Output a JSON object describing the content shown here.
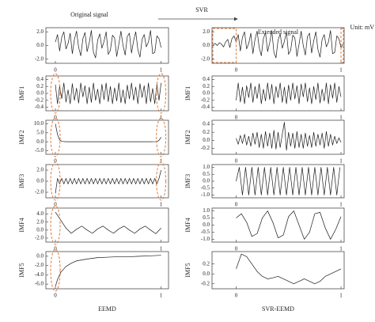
{
  "figure": {
    "arrow_label": "SVR"
  },
  "chart_data": [
    {
      "type": "line",
      "title": "Original signal",
      "color": "#1a1a1a",
      "xlim": [
        -0.09,
        1.07
      ],
      "xticks": [
        0,
        1
      ],
      "ylim": [
        -2.6,
        2.6
      ],
      "yticks": [
        {
          "value": 2,
          "label": "2.0"
        },
        {
          "value": 0,
          "label": "0.0"
        },
        {
          "value": -2,
          "label": "-2.0"
        }
      ],
      "x": [
        0,
        0.02,
        0.04,
        0.06,
        0.08,
        0.1,
        0.12,
        0.14,
        0.16,
        0.18,
        0.2,
        0.22,
        0.24,
        0.26,
        0.28,
        0.3,
        0.32,
        0.34,
        0.36,
        0.38,
        0.4,
        0.42,
        0.44,
        0.46,
        0.48,
        0.5,
        0.52,
        0.54,
        0.56,
        0.58,
        0.6,
        0.62,
        0.64,
        0.66,
        0.68,
        0.7,
        0.72,
        0.74,
        0.76,
        0.78,
        0.8,
        0.82,
        0.84,
        0.86,
        0.88,
        0.9,
        0.92,
        0.94,
        0.96,
        0.98,
        1
      ],
      "values": [
        0.5,
        1.6,
        -0.8,
        1.2,
        2.0,
        -0.5,
        0.3,
        1.8,
        -1.2,
        0.9,
        2.1,
        -0.3,
        -1.5,
        1.0,
        1.9,
        -0.9,
        0.4,
        2.2,
        -1.0,
        -1.8,
        0.8,
        1.7,
        -0.4,
        0.6,
        2.0,
        -1.3,
        -0.7,
        1.5,
        1.1,
        -1.6,
        0.2,
        2.1,
        0.0,
        -1.4,
        1.3,
        1.8,
        -1.1,
        0.7,
        2.0,
        -0.6,
        -1.7,
        0.9,
        1.6,
        -0.2,
        0.5,
        2.2,
        -1.2,
        -1.0,
        1.4,
        1.0,
        -0.3
      ]
    },
    {
      "type": "line",
      "title": "Extended signal",
      "annotation": "Unit: mV",
      "color": "#1a1a1a",
      "xlim": [
        -0.23,
        1.03
      ],
      "xticks": [
        0,
        1
      ],
      "ylim": [
        -2.6,
        2.6
      ],
      "yticks": [
        {
          "value": 2,
          "label": "2.0"
        },
        {
          "value": 0,
          "label": "0.0"
        },
        {
          "value": -2,
          "label": "-2.0"
        }
      ],
      "x": [
        -0.22,
        -0.2,
        -0.18,
        -0.16,
        -0.14,
        -0.12,
        -0.1,
        -0.08,
        -0.06,
        -0.04,
        -0.02,
        0,
        0.02,
        0.04,
        0.06,
        0.08,
        0.1,
        0.12,
        0.14,
        0.16,
        0.18,
        0.2,
        0.22,
        0.24,
        0.26,
        0.28,
        0.3,
        0.32,
        0.34,
        0.36,
        0.38,
        0.4,
        0.42,
        0.44,
        0.46,
        0.48,
        0.5,
        0.52,
        0.54,
        0.56,
        0.58,
        0.6,
        0.62,
        0.64,
        0.66,
        0.68,
        0.7,
        0.72,
        0.74,
        0.76,
        0.78,
        0.8,
        0.82,
        0.84,
        0.86,
        0.88,
        0.9,
        0.92,
        0.94,
        0.96,
        0.98,
        1,
        1.02
      ],
      "values": [
        0.1,
        0.3,
        0.0,
        0.4,
        0.2,
        -0.2,
        0.5,
        0.9,
        -0.3,
        1.0,
        1.4,
        0.5,
        1.6,
        -0.8,
        1.2,
        2.0,
        -0.5,
        0.3,
        1.8,
        -1.2,
        0.9,
        2.1,
        -0.3,
        -1.5,
        1.0,
        1.9,
        -0.9,
        0.4,
        2.2,
        -1.0,
        -1.8,
        0.8,
        1.7,
        -0.4,
        0.6,
        2.0,
        -1.3,
        -0.7,
        1.5,
        1.1,
        -1.6,
        0.2,
        2.1,
        0.0,
        -1.4,
        1.3,
        1.8,
        -1.1,
        0.7,
        2.0,
        -0.6,
        -1.7,
        0.9,
        1.6,
        -0.2,
        0.5,
        2.2,
        -1.2,
        -1.0,
        1.4,
        1.0,
        -0.3,
        0.2
      ]
    },
    {
      "type": "line",
      "ylabel": "IMF1",
      "color": "#1a1a1a",
      "xlim": [
        -0.09,
        1.07
      ],
      "xticks": [
        0,
        1
      ],
      "ylim": [
        -0.5,
        0.5
      ],
      "yticks": [
        {
          "value": 0.4,
          "label": "0.4"
        },
        {
          "value": 0.2,
          "label": "0.2"
        },
        {
          "value": 0,
          "label": "0.0"
        },
        {
          "value": -0.2,
          "label": "-0.2"
        },
        {
          "value": -0.4,
          "label": "-0.4"
        }
      ],
      "x": [
        0,
        0.02,
        0.04,
        0.06,
        0.08,
        0.1,
        0.12,
        0.14,
        0.16,
        0.18,
        0.2,
        0.22,
        0.24,
        0.26,
        0.28,
        0.3,
        0.32,
        0.34,
        0.36,
        0.38,
        0.4,
        0.42,
        0.44,
        0.46,
        0.48,
        0.5,
        0.52,
        0.54,
        0.56,
        0.58,
        0.6,
        0.62,
        0.64,
        0.66,
        0.68,
        0.7,
        0.72,
        0.74,
        0.76,
        0.78,
        0.8,
        0.82,
        0.84,
        0.86,
        0.88,
        0.9,
        0.92,
        0.94,
        0.96,
        0.98,
        1
      ],
      "values": [
        0.25,
        -0.3,
        0.2,
        -0.15,
        0.3,
        -0.25,
        0.1,
        -0.3,
        0.28,
        -0.2,
        0.15,
        -0.28,
        0.3,
        -0.1,
        0.22,
        -0.3,
        0.18,
        -0.26,
        0.3,
        -0.2,
        0.12,
        -0.3,
        0.26,
        -0.18,
        0.3,
        -0.24,
        0.2,
        -0.3,
        0.16,
        -0.22,
        0.3,
        -0.27,
        0.1,
        -0.3,
        0.24,
        -0.16,
        0.3,
        -0.2,
        0.18,
        -0.3,
        0.28,
        -0.12,
        0.22,
        -0.3,
        0.3,
        -0.25,
        0.14,
        -0.3,
        0.26,
        -0.2,
        0.3
      ]
    },
    {
      "type": "line",
      "ylabel": "IMF1",
      "color": "#1a1a1a",
      "xlim": [
        -0.23,
        1.03
      ],
      "xticks": [
        0,
        1
      ],
      "ylim": [
        -0.5,
        0.5
      ],
      "yticks": [
        {
          "value": 0.4,
          "label": "0.4"
        },
        {
          "value": 0.2,
          "label": "0.2"
        },
        {
          "value": 0,
          "label": "0.0"
        },
        {
          "value": -0.2,
          "label": "-0.2"
        },
        {
          "value": -0.4,
          "label": "-0.4"
        }
      ],
      "x": [
        0,
        0.02,
        0.04,
        0.06,
        0.08,
        0.1,
        0.12,
        0.14,
        0.16,
        0.18,
        0.2,
        0.22,
        0.24,
        0.26,
        0.28,
        0.3,
        0.32,
        0.34,
        0.36,
        0.38,
        0.4,
        0.42,
        0.44,
        0.46,
        0.48,
        0.5,
        0.52,
        0.54,
        0.56,
        0.58,
        0.6,
        0.62,
        0.64,
        0.66,
        0.68,
        0.7,
        0.72,
        0.74,
        0.76,
        0.78,
        0.8,
        0.82,
        0.84,
        0.86,
        0.88,
        0.9,
        0.92,
        0.94,
        0.96,
        0.98,
        1
      ],
      "values": [
        -0.2,
        0.3,
        -0.25,
        0.18,
        -0.3,
        0.22,
        -0.12,
        0.3,
        -0.26,
        0.2,
        -0.15,
        0.28,
        -0.3,
        0.12,
        -0.22,
        0.3,
        -0.18,
        0.26,
        -0.3,
        0.2,
        -0.12,
        0.3,
        -0.26,
        0.18,
        -0.3,
        0.24,
        -0.2,
        0.3,
        -0.16,
        0.22,
        -0.3,
        0.27,
        -0.1,
        0.3,
        -0.24,
        0.16,
        -0.3,
        0.2,
        -0.18,
        0.3,
        -0.28,
        0.12,
        -0.22,
        0.3,
        -0.3,
        0.25,
        -0.14,
        0.3,
        -0.26,
        0.2,
        -0.1
      ]
    },
    {
      "type": "line",
      "ylabel": "IMF2",
      "color": "#1a1a1a",
      "xlim": [
        -0.09,
        1.07
      ],
      "xticks": [
        0,
        1
      ],
      "ylim": [
        -7,
        12
      ],
      "yticks": [
        {
          "value": 10,
          "label": "10.0"
        },
        {
          "value": 5,
          "label": "5.0"
        },
        {
          "value": 0,
          "label": "0.0"
        },
        {
          "value": -5,
          "label": "-5.0"
        }
      ],
      "x": [
        0,
        0.02,
        0.04,
        0.06,
        0.1,
        0.2,
        0.3,
        0.4,
        0.5,
        0.6,
        0.7,
        0.8,
        0.9,
        0.96,
        0.98,
        1
      ],
      "values": [
        10.0,
        4.0,
        1.0,
        0.2,
        0,
        0,
        0,
        0,
        0,
        0,
        0,
        0,
        0,
        0.1,
        0.8,
        2.5
      ]
    },
    {
      "type": "line",
      "ylabel": "IMF2",
      "color": "#1a1a1a",
      "xlim": [
        -0.23,
        1.03
      ],
      "xticks": [
        0,
        1
      ],
      "ylim": [
        -0.35,
        0.5
      ],
      "yticks": [
        {
          "value": 0.4,
          "label": "0.4"
        },
        {
          "value": 0.2,
          "label": "0.2"
        },
        {
          "value": 0,
          "label": "0.0"
        },
        {
          "value": -0.2,
          "label": "-0.2"
        }
      ],
      "x": [
        0,
        0.02,
        0.04,
        0.06,
        0.08,
        0.1,
        0.12,
        0.14,
        0.16,
        0.18,
        0.2,
        0.22,
        0.24,
        0.26,
        0.28,
        0.3,
        0.32,
        0.34,
        0.36,
        0.38,
        0.4,
        0.42,
        0.44,
        0.46,
        0.48,
        0.5,
        0.52,
        0.54,
        0.56,
        0.58,
        0.6,
        0.62,
        0.64,
        0.66,
        0.68,
        0.7,
        0.72,
        0.74,
        0.76,
        0.78,
        0.8,
        0.82,
        0.84,
        0.86,
        0.88,
        0.9,
        0.92,
        0.94,
        0.96,
        0.98,
        1
      ],
      "values": [
        0.05,
        -0.1,
        0.12,
        -0.08,
        0.15,
        -0.12,
        0.1,
        -0.15,
        0.18,
        -0.1,
        0.2,
        -0.18,
        0.15,
        -0.2,
        0.22,
        -0.15,
        0.18,
        -0.2,
        0.25,
        -0.22,
        0.2,
        -0.18,
        0.15,
        0.45,
        -0.25,
        0.2,
        -0.15,
        0.18,
        -0.2,
        0.22,
        -0.18,
        0.15,
        -0.2,
        0.18,
        -0.15,
        0.12,
        -0.18,
        0.2,
        -0.15,
        0.15,
        -0.12,
        0.18,
        -0.2,
        0.22,
        -0.15,
        0.15,
        -0.12,
        0.1,
        -0.08,
        0.06,
        -0.05
      ]
    },
    {
      "type": "line",
      "ylabel": "IMF3",
      "color": "#1a1a1a",
      "xlim": [
        -0.09,
        1.07
      ],
      "xticks": [
        0,
        1
      ],
      "ylim": [
        -3,
        3
      ],
      "yticks": [
        {
          "value": 2,
          "label": "2.0"
        },
        {
          "value": 0,
          "label": "0.0"
        },
        {
          "value": -2,
          "label": "-2.0"
        }
      ],
      "x": [
        0,
        0.02,
        0.04,
        0.06,
        0.08,
        0.1,
        0.12,
        0.14,
        0.16,
        0.18,
        0.2,
        0.22,
        0.24,
        0.26,
        0.28,
        0.3,
        0.32,
        0.34,
        0.36,
        0.38,
        0.4,
        0.42,
        0.44,
        0.46,
        0.48,
        0.5,
        0.52,
        0.54,
        0.56,
        0.58,
        0.6,
        0.62,
        0.64,
        0.66,
        0.68,
        0.7,
        0.72,
        0.74,
        0.76,
        0.78,
        0.8,
        0.82,
        0.84,
        0.86,
        0.88,
        0.9,
        0.92,
        0.94,
        0.96,
        0.98,
        1
      ],
      "values": [
        -2.2,
        0.5,
        -0.5,
        0.5,
        -0.5,
        0.5,
        -0.5,
        0.5,
        -0.5,
        0.5,
        -0.5,
        0.5,
        -0.5,
        0.5,
        -0.5,
        0.5,
        -0.5,
        0.5,
        -0.5,
        0.5,
        -0.5,
        0.5,
        -0.5,
        0.5,
        -0.5,
        0.5,
        -0.5,
        0.5,
        -0.5,
        0.5,
        -0.5,
        0.5,
        -0.5,
        0.5,
        -0.5,
        0.5,
        -0.5,
        0.5,
        -0.5,
        0.5,
        -0.5,
        0.5,
        -0.5,
        0.5,
        -0.5,
        0.5,
        -0.5,
        0.5,
        -0.5,
        0.5,
        2.0
      ]
    },
    {
      "type": "line",
      "ylabel": "IMF3",
      "color": "#1a1a1a",
      "xlim": [
        -0.23,
        1.03
      ],
      "xticks": [
        0,
        1
      ],
      "ylim": [
        -1.2,
        1.2
      ],
      "yticks": [
        {
          "value": 1,
          "label": "1.0"
        },
        {
          "value": 0.5,
          "label": "0.5"
        },
        {
          "value": 0,
          "label": "0.0"
        },
        {
          "value": -0.5,
          "label": "-0.5"
        },
        {
          "value": -1,
          "label": "-1.0"
        }
      ],
      "x": [
        0,
        0.03,
        0.06,
        0.09,
        0.12,
        0.15,
        0.18,
        0.21,
        0.24,
        0.27,
        0.3,
        0.33,
        0.36,
        0.39,
        0.42,
        0.45,
        0.48,
        0.51,
        0.54,
        0.57,
        0.6,
        0.63,
        0.66,
        0.69,
        0.72,
        0.75,
        0.78,
        0.81,
        0.84,
        0.87,
        0.9,
        0.93,
        0.96,
        0.99
      ],
      "values": [
        0.0,
        1,
        -1,
        1,
        -1,
        1,
        -1,
        1,
        -1,
        1,
        -1,
        1,
        -1,
        1,
        -1,
        1,
        -1,
        1,
        -1,
        1,
        -1,
        1,
        -1,
        1,
        -1,
        1,
        -1,
        1,
        -1,
        1,
        -1,
        1,
        -1,
        1
      ]
    },
    {
      "type": "line",
      "ylabel": "IMF4",
      "color": "#1a1a1a",
      "xlim": [
        -0.09,
        1.07
      ],
      "xticks": [
        0,
        1
      ],
      "ylim": [
        -3,
        5.5
      ],
      "yticks": [
        {
          "value": 4,
          "label": "4.0"
        },
        {
          "value": 2,
          "label": "2.0"
        },
        {
          "value": 0,
          "label": "0.0"
        },
        {
          "value": -2,
          "label": "-2.0"
        }
      ],
      "x": [
        0,
        0.05,
        0.1,
        0.15,
        0.2,
        0.25,
        0.3,
        0.35,
        0.4,
        0.45,
        0.5,
        0.55,
        0.6,
        0.65,
        0.7,
        0.75,
        0.8,
        0.85,
        0.9,
        0.95,
        1
      ],
      "values": [
        4.5,
        2.5,
        0.5,
        -0.8,
        0.2,
        1.0,
        0.0,
        -0.8,
        0.3,
        1.0,
        0.0,
        -0.8,
        0.3,
        1.0,
        0.0,
        -0.8,
        0.3,
        1.0,
        0.0,
        -0.9,
        0.5
      ]
    },
    {
      "type": "line",
      "ylabel": "IMF4",
      "color": "#1a1a1a",
      "xlim": [
        -0.23,
        1.03
      ],
      "xticks": [
        0,
        1
      ],
      "ylim": [
        -1.2,
        1.2
      ],
      "yticks": [
        {
          "value": 1,
          "label": "1.0"
        },
        {
          "value": 0.5,
          "label": "0.5"
        },
        {
          "value": 0,
          "label": "0.0"
        },
        {
          "value": -0.5,
          "label": "-0.5"
        },
        {
          "value": -1,
          "label": "-1.0"
        }
      ],
      "x": [
        0,
        0.05,
        0.1,
        0.15,
        0.2,
        0.25,
        0.3,
        0.35,
        0.4,
        0.45,
        0.5,
        0.55,
        0.6,
        0.65,
        0.7,
        0.75,
        0.8,
        0.85,
        0.9,
        0.95,
        1
      ],
      "values": [
        0.5,
        0.8,
        0.2,
        -0.8,
        -0.6,
        0.5,
        1.0,
        0.2,
        -0.9,
        -0.7,
        0.6,
        1.0,
        0.0,
        -1.0,
        -0.5,
        0.8,
        0.9,
        -0.2,
        -1.0,
        -0.3,
        0.6
      ]
    },
    {
      "type": "line",
      "ylabel": "IMF5",
      "xlabel": "EEMD",
      "color": "#1a1a1a",
      "xlim": [
        -0.09,
        1.07
      ],
      "xticks": [
        0,
        1
      ],
      "ylim": [
        -7,
        1
      ],
      "yticks": [
        {
          "value": 0,
          "label": "0.0"
        },
        {
          "value": -2,
          "label": "-2.0"
        },
        {
          "value": -4,
          "label": "-4.0"
        },
        {
          "value": -6,
          "label": "-6.0"
        }
      ],
      "x": [
        0,
        0.02,
        0.05,
        0.1,
        0.15,
        0.2,
        0.3,
        0.4,
        0.5,
        0.6,
        0.7,
        0.8,
        0.9,
        1
      ],
      "values": [
        -6.5,
        -5.0,
        -3.5,
        -2.2,
        -1.5,
        -1.0,
        -0.6,
        -0.3,
        -0.2,
        -0.1,
        -0.1,
        0.0,
        0.1,
        0.2
      ]
    },
    {
      "type": "line",
      "ylabel": "IMF5",
      "xlabel": "SVR-EEMD",
      "color": "#1a1a1a",
      "xlim": [
        -0.23,
        1.03
      ],
      "xticks": [
        0,
        1
      ],
      "ylim": [
        -0.3,
        0.45
      ],
      "yticks": [
        {
          "value": 0.2,
          "label": "0.2"
        },
        {
          "value": 0,
          "label": "0.0"
        },
        {
          "value": -0.2,
          "label": "-0.2"
        }
      ],
      "x": [
        0,
        0.05,
        0.1,
        0.15,
        0.2,
        0.25,
        0.3,
        0.35,
        0.4,
        0.45,
        0.5,
        0.55,
        0.6,
        0.65,
        0.7,
        0.75,
        0.8,
        0.85,
        0.9,
        0.95,
        1
      ],
      "values": [
        0.1,
        0.4,
        0.35,
        0.2,
        0.05,
        -0.05,
        -0.1,
        -0.08,
        -0.05,
        -0.1,
        -0.15,
        -0.2,
        -0.15,
        -0.1,
        -0.15,
        -0.2,
        -0.15,
        -0.05,
        0.0,
        0.05,
        0.1
      ]
    }
  ]
}
